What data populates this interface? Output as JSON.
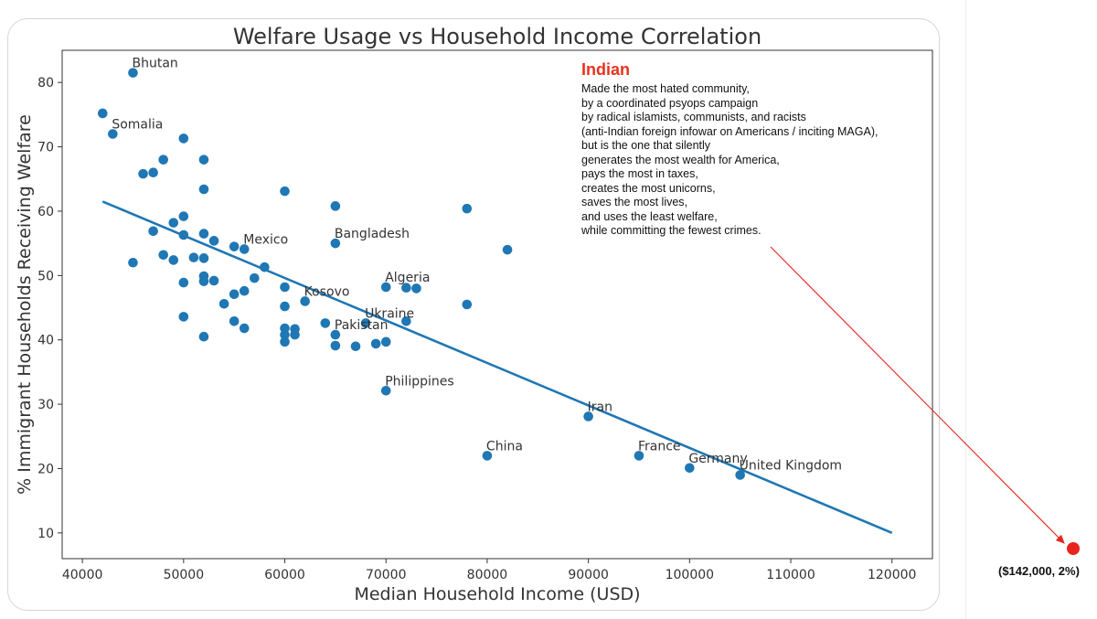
{
  "chart_data": {
    "type": "scatter",
    "title": "Welfare Usage vs Household Income Correlation",
    "xlabel": "Median Household Income (USD)",
    "ylabel": "% Immigrant Households Receiving Welfare",
    "xlim": [
      38000,
      124000
    ],
    "ylim": [
      6,
      85
    ],
    "xticks": [
      40000,
      50000,
      60000,
      70000,
      80000,
      90000,
      100000,
      110000,
      120000
    ],
    "yticks": [
      10,
      20,
      30,
      40,
      50,
      60,
      70,
      80
    ],
    "grid": false,
    "point_color": "#1f77b4",
    "trend_line": {
      "x": [
        42000,
        120000
      ],
      "y": [
        61.5,
        10
      ]
    },
    "points": [
      {
        "x": 45000,
        "y": 81.5,
        "label": "Bhutan"
      },
      {
        "x": 42000,
        "y": 75.2
      },
      {
        "x": 43000,
        "y": 72.0,
        "label": "Somalia"
      },
      {
        "x": 50000,
        "y": 71.3
      },
      {
        "x": 52000,
        "y": 68.0
      },
      {
        "x": 48000,
        "y": 68.0
      },
      {
        "x": 46000,
        "y": 65.8
      },
      {
        "x": 47000,
        "y": 66.0
      },
      {
        "x": 52000,
        "y": 63.4
      },
      {
        "x": 60000,
        "y": 63.1
      },
      {
        "x": 65000,
        "y": 60.8
      },
      {
        "x": 78000,
        "y": 60.4
      },
      {
        "x": 50000,
        "y": 59.2
      },
      {
        "x": 49000,
        "y": 58.2
      },
      {
        "x": 47000,
        "y": 56.9
      },
      {
        "x": 50000,
        "y": 56.3
      },
      {
        "x": 52000,
        "y": 56.5
      },
      {
        "x": 53000,
        "y": 55.4
      },
      {
        "x": 55000,
        "y": 54.5
      },
      {
        "x": 56000,
        "y": 54.1,
        "label": "Mexico"
      },
      {
        "x": 65000,
        "y": 55.0,
        "label": "Bangladesh"
      },
      {
        "x": 82000,
        "y": 54.0
      },
      {
        "x": 48000,
        "y": 53.2
      },
      {
        "x": 49000,
        "y": 52.4
      },
      {
        "x": 51000,
        "y": 52.8
      },
      {
        "x": 52000,
        "y": 52.7
      },
      {
        "x": 45000,
        "y": 52.0
      },
      {
        "x": 58000,
        "y": 51.3
      },
      {
        "x": 52000,
        "y": 49.9
      },
      {
        "x": 52000,
        "y": 49.1
      },
      {
        "x": 53000,
        "y": 49.2
      },
      {
        "x": 50000,
        "y": 48.9
      },
      {
        "x": 57000,
        "y": 49.6
      },
      {
        "x": 56000,
        "y": 47.6
      },
      {
        "x": 55000,
        "y": 47.1
      },
      {
        "x": 60000,
        "y": 48.2
      },
      {
        "x": 70000,
        "y": 48.2,
        "label": "Algeria"
      },
      {
        "x": 72000,
        "y": 48.1
      },
      {
        "x": 73000,
        "y": 48.0
      },
      {
        "x": 54000,
        "y": 45.6
      },
      {
        "x": 60000,
        "y": 45.2
      },
      {
        "x": 62000,
        "y": 46.0,
        "label": "Kosovo"
      },
      {
        "x": 78000,
        "y": 45.5
      },
      {
        "x": 50000,
        "y": 43.6
      },
      {
        "x": 55000,
        "y": 42.9
      },
      {
        "x": 56000,
        "y": 41.8
      },
      {
        "x": 64000,
        "y": 42.6
      },
      {
        "x": 68000,
        "y": 42.6,
        "label": "Ukraine"
      },
      {
        "x": 72000,
        "y": 42.9
      },
      {
        "x": 60000,
        "y": 41.8
      },
      {
        "x": 61000,
        "y": 41.7
      },
      {
        "x": 60000,
        "y": 40.8
      },
      {
        "x": 61000,
        "y": 40.8
      },
      {
        "x": 60000,
        "y": 39.7
      },
      {
        "x": 65000,
        "y": 40.8,
        "label": "Pakistan"
      },
      {
        "x": 65000,
        "y": 39.1
      },
      {
        "x": 67000,
        "y": 39.0
      },
      {
        "x": 69000,
        "y": 39.4
      },
      {
        "x": 70000,
        "y": 39.7
      },
      {
        "x": 52000,
        "y": 40.5
      },
      {
        "x": 70000,
        "y": 32.1,
        "label": "Philippines"
      },
      {
        "x": 90000,
        "y": 28.1,
        "label": "Iran"
      },
      {
        "x": 80000,
        "y": 22.0,
        "label": "China"
      },
      {
        "x": 95000,
        "y": 22.0,
        "label": "France"
      },
      {
        "x": 100000,
        "y": 20.1,
        "label": "Germany"
      },
      {
        "x": 105000,
        "y": 19.0,
        "label": "United Kingdom"
      }
    ],
    "highlight": {
      "label": "($142,000, 2%)",
      "income": 142000,
      "welfare_pct": 2,
      "color": "#e8241c"
    }
  },
  "annotation": {
    "title": "Indian",
    "lines": [
      "Made the most hated community,",
      "by a coordinated psyops campaign",
      "by radical islamists, communists, and racists",
      "(anti-Indian foreign infowar on Americans / inciting MAGA),",
      "but is the one that silently",
      "generates the most wealth for America,",
      "pays the most in taxes,",
      "creates the most unicorns,",
      "saves the most lives,",
      "and uses the least welfare,",
      "while committing the fewest crimes."
    ],
    "title_color": "#e8321e"
  }
}
